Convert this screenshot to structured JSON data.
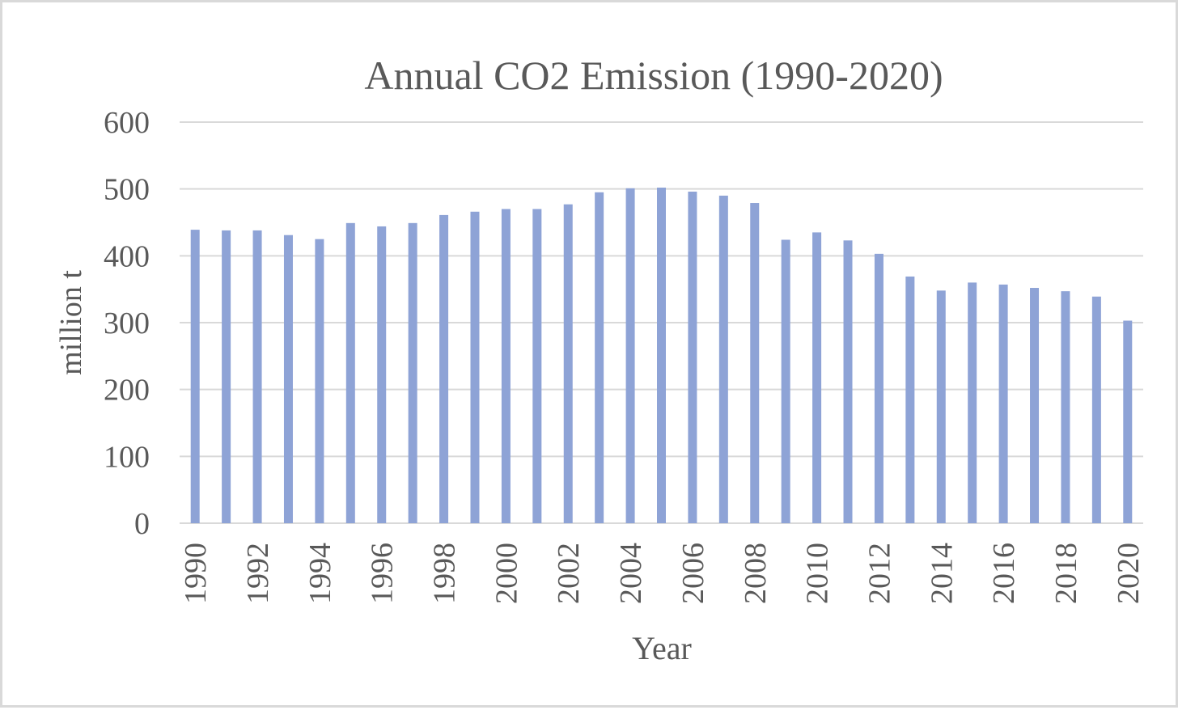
{
  "chart_data": {
    "type": "bar",
    "title": "Annual CO2 Emission (1990-2020)",
    "xlabel": "Year",
    "ylabel": "million t",
    "ylim": [
      0,
      600
    ],
    "yticks": [
      0,
      100,
      200,
      300,
      400,
      500,
      600
    ],
    "grid": true,
    "legend": "none",
    "categories": [
      "1990",
      "1991",
      "1992",
      "1993",
      "1994",
      "1995",
      "1996",
      "1997",
      "1998",
      "1999",
      "2000",
      "2001",
      "2002",
      "2003",
      "2004",
      "2005",
      "2006",
      "2007",
      "2008",
      "2009",
      "2010",
      "2011",
      "2012",
      "2013",
      "2014",
      "2015",
      "2016",
      "2017",
      "2018",
      "2019",
      "2020"
    ],
    "tick_labels": [
      "1990",
      "",
      "1992",
      "",
      "1994",
      "",
      "1996",
      "",
      "1998",
      "",
      "2000",
      "",
      "2002",
      "",
      "2004",
      "",
      "2006",
      "",
      "2008",
      "",
      "2010",
      "",
      "2012",
      "",
      "2014",
      "",
      "2016",
      "",
      "2018",
      "",
      "2020"
    ],
    "values": [
      439,
      438,
      438,
      431,
      425,
      449,
      444,
      449,
      461,
      466,
      470,
      470,
      477,
      495,
      501,
      502,
      496,
      490,
      479,
      424,
      435,
      423,
      403,
      369,
      348,
      360,
      357,
      352,
      347,
      339,
      303
    ],
    "colors": {
      "bar": "#8ea3d6",
      "grid": "#d9d9d9",
      "text": "#595959"
    }
  }
}
